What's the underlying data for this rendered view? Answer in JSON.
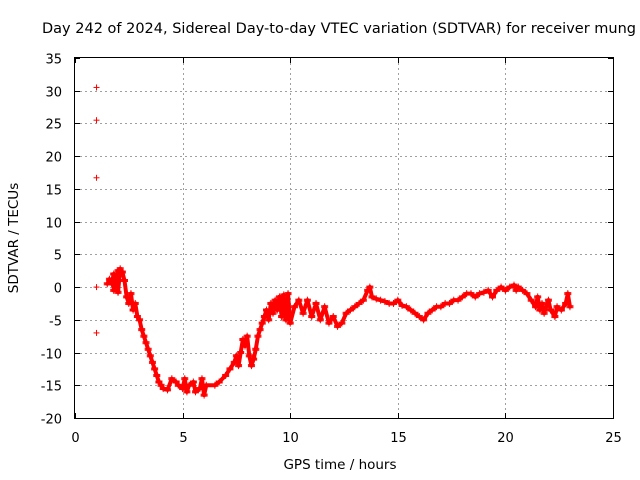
{
  "chart_data": {
    "type": "scatter",
    "title": "Day 242 of 2024, Sidereal Day-to-day VTEC variation (SDTVAR) for receiver mung",
    "xlabel": "GPS time / hours",
    "ylabel": "SDTVAR / TECUs",
    "xlim": [
      0,
      25
    ],
    "ylim": [
      -20,
      35
    ],
    "xticks": [
      0,
      5,
      10,
      15,
      20,
      25
    ],
    "yticks": [
      -20,
      -15,
      -10,
      -5,
      0,
      5,
      10,
      15,
      20,
      25,
      30,
      35
    ],
    "grid": true,
    "marker": "+",
    "color": "#ff0000",
    "series": [
      {
        "name": "SDTVAR",
        "points": [
          [
            1.0,
            30.5
          ],
          [
            1.0,
            25.5
          ],
          [
            1.0,
            16.7
          ],
          [
            1.0,
            0.0
          ],
          [
            1.0,
            -7.0
          ],
          [
            1.5,
            0.5
          ],
          [
            1.6,
            1.2
          ],
          [
            1.7,
            0.5
          ],
          [
            1.8,
            2.0
          ],
          [
            1.8,
            -0.5
          ],
          [
            1.9,
            1.0
          ],
          [
            2.0,
            2.5
          ],
          [
            2.0,
            -0.8
          ],
          [
            2.1,
            2.8
          ],
          [
            2.2,
            2.3
          ],
          [
            2.3,
            1.0
          ],
          [
            2.4,
            -1.5
          ],
          [
            2.5,
            -2.5
          ],
          [
            2.6,
            -1.0
          ],
          [
            2.7,
            -3.5
          ],
          [
            2.8,
            -2.5
          ],
          [
            2.9,
            -4.5
          ],
          [
            3.0,
            -5.0
          ],
          [
            3.1,
            -6.5
          ],
          [
            3.2,
            -7.5
          ],
          [
            3.3,
            -8.5
          ],
          [
            3.4,
            -9.5
          ],
          [
            3.5,
            -10.5
          ],
          [
            3.6,
            -11.5
          ],
          [
            3.7,
            -12.5
          ],
          [
            3.8,
            -13.5
          ],
          [
            3.9,
            -14.5
          ],
          [
            4.0,
            -15.0
          ],
          [
            4.1,
            -15.5
          ],
          [
            4.3,
            -15.7
          ],
          [
            4.5,
            -14.0
          ],
          [
            4.7,
            -14.5
          ],
          [
            4.8,
            -15.0
          ],
          [
            5.0,
            -15.5
          ],
          [
            5.1,
            -14.0
          ],
          [
            5.2,
            -16.0
          ],
          [
            5.3,
            -15.0
          ],
          [
            5.5,
            -14.5
          ],
          [
            5.6,
            -16.0
          ],
          [
            5.8,
            -15.5
          ],
          [
            5.9,
            -14.0
          ],
          [
            6.0,
            -16.5
          ],
          [
            6.1,
            -15.0
          ],
          [
            6.5,
            -15.0
          ],
          [
            6.7,
            -14.5
          ],
          [
            7.0,
            -13.5
          ],
          [
            7.2,
            -12.5
          ],
          [
            7.4,
            -11.5
          ],
          [
            7.5,
            -10.5
          ],
          [
            7.6,
            -12.0
          ],
          [
            7.7,
            -10.0
          ],
          [
            7.8,
            -8.0
          ],
          [
            7.9,
            -9.0
          ],
          [
            8.0,
            -7.5
          ],
          [
            8.1,
            -10.5
          ],
          [
            8.2,
            -12.0
          ],
          [
            8.3,
            -11.0
          ],
          [
            8.4,
            -9.5
          ],
          [
            8.5,
            -7.5
          ],
          [
            8.6,
            -6.5
          ],
          [
            8.7,
            -5.5
          ],
          [
            8.8,
            -4.5
          ],
          [
            8.9,
            -3.5
          ],
          [
            9.0,
            -5.0
          ],
          [
            9.1,
            -2.5
          ],
          [
            9.2,
            -4.0
          ],
          [
            9.3,
            -2.0
          ],
          [
            9.4,
            -3.5
          ],
          [
            9.5,
            -1.5
          ],
          [
            9.6,
            -4.5
          ],
          [
            9.7,
            -1.2
          ],
          [
            9.8,
            -5.0
          ],
          [
            9.9,
            -1.0
          ],
          [
            10.0,
            -5.5
          ],
          [
            10.2,
            -3.0
          ],
          [
            10.4,
            -2.0
          ],
          [
            10.6,
            -4.0
          ],
          [
            10.8,
            -2.0
          ],
          [
            11.0,
            -4.5
          ],
          [
            11.2,
            -2.5
          ],
          [
            11.4,
            -5.0
          ],
          [
            11.6,
            -3.0
          ],
          [
            11.8,
            -5.5
          ],
          [
            12.0,
            -4.5
          ],
          [
            12.2,
            -6.0
          ],
          [
            12.4,
            -5.5
          ],
          [
            12.6,
            -4.0
          ],
          [
            12.8,
            -3.5
          ],
          [
            13.0,
            -3.0
          ],
          [
            13.2,
            -2.5
          ],
          [
            13.4,
            -2.0
          ],
          [
            13.6,
            -0.5
          ],
          [
            13.7,
            0.0
          ],
          [
            13.8,
            -1.5
          ],
          [
            14.0,
            -1.8
          ],
          [
            14.2,
            -2.0
          ],
          [
            14.4,
            -2.2
          ],
          [
            14.6,
            -2.5
          ],
          [
            14.8,
            -2.5
          ],
          [
            15.0,
            -2.0
          ],
          [
            15.2,
            -2.8
          ],
          [
            15.4,
            -3.0
          ],
          [
            15.6,
            -3.5
          ],
          [
            15.8,
            -4.0
          ],
          [
            16.0,
            -4.5
          ],
          [
            16.2,
            -5.0
          ],
          [
            16.4,
            -4.0
          ],
          [
            16.6,
            -3.5
          ],
          [
            16.8,
            -3.0
          ],
          [
            17.0,
            -3.0
          ],
          [
            17.2,
            -2.5
          ],
          [
            17.4,
            -2.5
          ],
          [
            17.6,
            -2.0
          ],
          [
            17.8,
            -2.0
          ],
          [
            18.0,
            -1.5
          ],
          [
            18.2,
            -1.0
          ],
          [
            18.4,
            -1.0
          ],
          [
            18.6,
            -1.5
          ],
          [
            18.8,
            -1.0
          ],
          [
            19.0,
            -0.8
          ],
          [
            19.2,
            -0.5
          ],
          [
            19.4,
            -1.5
          ],
          [
            19.6,
            -0.5
          ],
          [
            19.8,
            0.0
          ],
          [
            20.0,
            -0.5
          ],
          [
            20.2,
            0.0
          ],
          [
            20.4,
            0.3
          ],
          [
            20.5,
            -0.5
          ],
          [
            20.6,
            0.0
          ],
          [
            20.8,
            -0.5
          ],
          [
            21.0,
            -1.0
          ],
          [
            21.2,
            -2.0
          ],
          [
            21.4,
            -3.0
          ],
          [
            21.5,
            -1.5
          ],
          [
            21.6,
            -3.5
          ],
          [
            21.7,
            -2.5
          ],
          [
            21.8,
            -4.0
          ],
          [
            22.0,
            -2.0
          ],
          [
            22.1,
            -3.5
          ],
          [
            22.3,
            -4.5
          ],
          [
            22.4,
            -3.0
          ],
          [
            22.6,
            -3.5
          ],
          [
            22.8,
            -2.5
          ],
          [
            22.9,
            -1.0
          ],
          [
            23.0,
            -3.0
          ]
        ]
      }
    ]
  }
}
